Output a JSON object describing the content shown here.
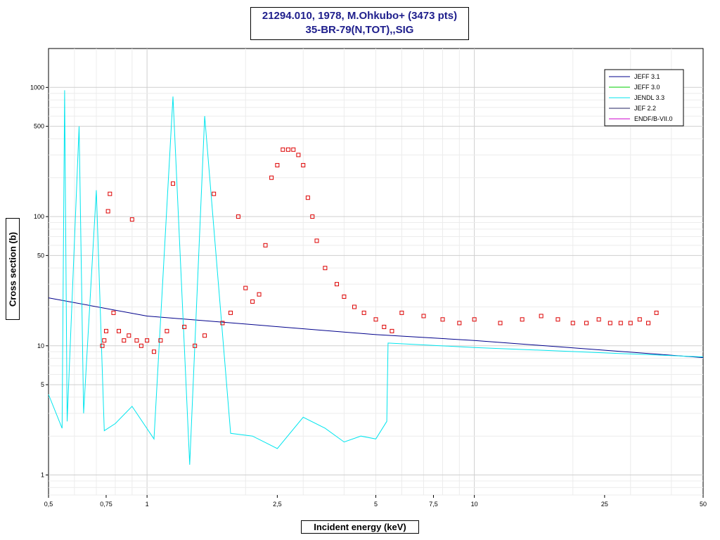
{
  "title": {
    "line1": "21294.010, 1978, M.Ohkubo+ (3473 pts)",
    "line2": "35-BR-79(N,TOT),,SIG"
  },
  "chart_data": {
    "type": "line",
    "x_scale": "log",
    "y_scale": "log",
    "xlabel": "Incident energy (keV)",
    "ylabel": "Cross section (b)",
    "xlim": [
      0.5,
      50
    ],
    "ylim": [
      0.7,
      2000
    ],
    "x_ticks": [
      {
        "value": 0.5,
        "label": "0,5"
      },
      {
        "value": 0.75,
        "label": "0,75"
      },
      {
        "value": 1,
        "label": "1"
      },
      {
        "value": 2.5,
        "label": "2,5"
      },
      {
        "value": 5,
        "label": "5"
      },
      {
        "value": 7.5,
        "label": "7,5"
      },
      {
        "value": 10,
        "label": "10"
      },
      {
        "value": 25,
        "label": "25"
      },
      {
        "value": 50,
        "label": "50"
      }
    ],
    "y_ticks": [
      {
        "value": 1,
        "label": "1"
      },
      {
        "value": 5,
        "label": "5"
      },
      {
        "value": 10,
        "label": "10"
      },
      {
        "value": 50,
        "label": "50"
      },
      {
        "value": 100,
        "label": "100"
      },
      {
        "value": 500,
        "label": "500"
      },
      {
        "value": 1000,
        "label": "1000"
      }
    ],
    "grid": true,
    "legend_position": "top-right",
    "series": [
      {
        "name": "JEFF 3.1",
        "color": "#00008b",
        "x": [
          0.5,
          1,
          5,
          10,
          50
        ],
        "y": [
          23.5,
          17,
          12.2,
          11,
          8.1
        ]
      },
      {
        "name": "JEFF 3.0",
        "color": "#00cc00",
        "x": [],
        "y": []
      },
      {
        "name": "JENDL 3.3",
        "color": "#00e5ee",
        "x": [
          0.5,
          0.55,
          0.56,
          0.57,
          0.62,
          0.64,
          0.7,
          0.74,
          0.8,
          0.9,
          1.05,
          1.2,
          1.35,
          1.5,
          1.8,
          2.1,
          2.5,
          3.0,
          3.5,
          4.0,
          4.5,
          5.0,
          5.4,
          5.45,
          10,
          50
        ],
        "y": [
          4.2,
          2.3,
          950,
          2.6,
          500,
          3.0,
          160,
          2.2,
          2.5,
          3.4,
          1.9,
          850,
          1.2,
          600,
          2.1,
          2.0,
          1.6,
          2.8,
          2.3,
          1.8,
          2.0,
          1.9,
          2.6,
          10.5,
          9.7,
          8.2
        ]
      },
      {
        "name": "JEF 2.2",
        "color": "#202060",
        "x": [],
        "y": []
      },
      {
        "name": "ENDF/B-VII.0",
        "color": "#cc00cc",
        "x": [],
        "y": []
      }
    ],
    "experimental": {
      "name": "21294.010, 1978, M.Ohkubo+",
      "color": "#dd0000",
      "marker": "open-square",
      "x": [
        0.73,
        0.74,
        0.75,
        0.76,
        0.77,
        0.79,
        0.82,
        0.85,
        0.88,
        0.9,
        0.93,
        0.96,
        1.0,
        1.05,
        1.1,
        1.15,
        1.2,
        1.3,
        1.4,
        1.5,
        1.6,
        1.7,
        1.8,
        1.9,
        2.0,
        2.1,
        2.2,
        2.3,
        2.4,
        2.5,
        2.6,
        2.7,
        2.8,
        2.9,
        3.0,
        3.1,
        3.2,
        3.3,
        3.5,
        3.8,
        4.0,
        4.3,
        4.6,
        5.0,
        5.3,
        5.6,
        6.0,
        7.0,
        8.0,
        9.0,
        10,
        12,
        14,
        16,
        18,
        20,
        22,
        24,
        26,
        28,
        30,
        32,
        34,
        36
      ],
      "y": [
        10,
        11,
        13,
        110,
        150,
        18,
        13,
        11,
        12,
        95,
        11,
        10,
        11,
        9,
        11,
        13,
        180,
        14,
        10,
        12,
        150,
        15,
        18,
        100,
        28,
        22,
        25,
        60,
        200,
        250,
        330,
        330,
        330,
        300,
        250,
        140,
        100,
        65,
        40,
        30,
        24,
        20,
        18,
        16,
        14,
        13,
        18,
        17,
        16,
        15,
        16,
        15,
        16,
        17,
        16,
        15,
        15,
        16,
        15,
        15,
        15,
        16,
        15,
        18
      ]
    }
  }
}
